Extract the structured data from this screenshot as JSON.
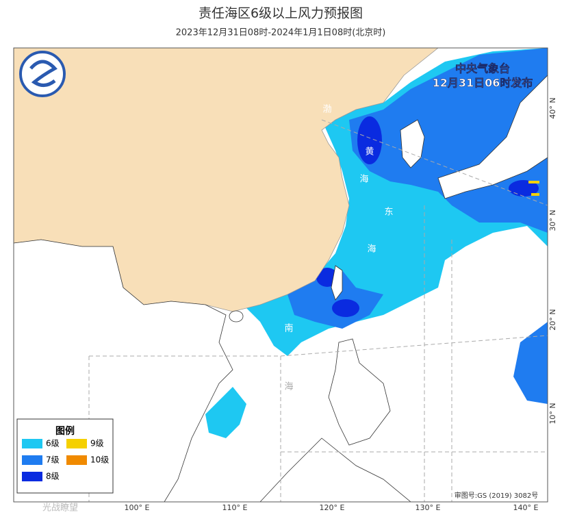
{
  "header": {
    "title": "责任海区6级以上风力预报图",
    "subtitle": "2023年12月31日08时-2024年1月1日08时(北京时)"
  },
  "issuer": {
    "name": "中央气象台",
    "time": "12月31日06时发布"
  },
  "sea_labels": [
    "渤",
    "黄",
    "海",
    "东",
    "海",
    "南",
    "海"
  ],
  "lon_labels": [
    "100° E",
    "110° E",
    "120° E",
    "130° E",
    "140° E"
  ],
  "lat_labels": [
    "40° N",
    "30° N",
    "20° N",
    "10° N"
  ],
  "legend": {
    "title": "图例",
    "items": [
      {
        "label": "6级",
        "color": "#1ec8f2"
      },
      {
        "label": "9级",
        "color": "#f5d000"
      },
      {
        "label": "7级",
        "color": "#1f7cf0"
      },
      {
        "label": "10级",
        "color": "#f08a00"
      },
      {
        "label": "8级",
        "color": "#0a2be0"
      }
    ]
  },
  "footer": {
    "approval": "审图号:GS (2019) 3082号",
    "watermark": "光战瞭望"
  }
}
